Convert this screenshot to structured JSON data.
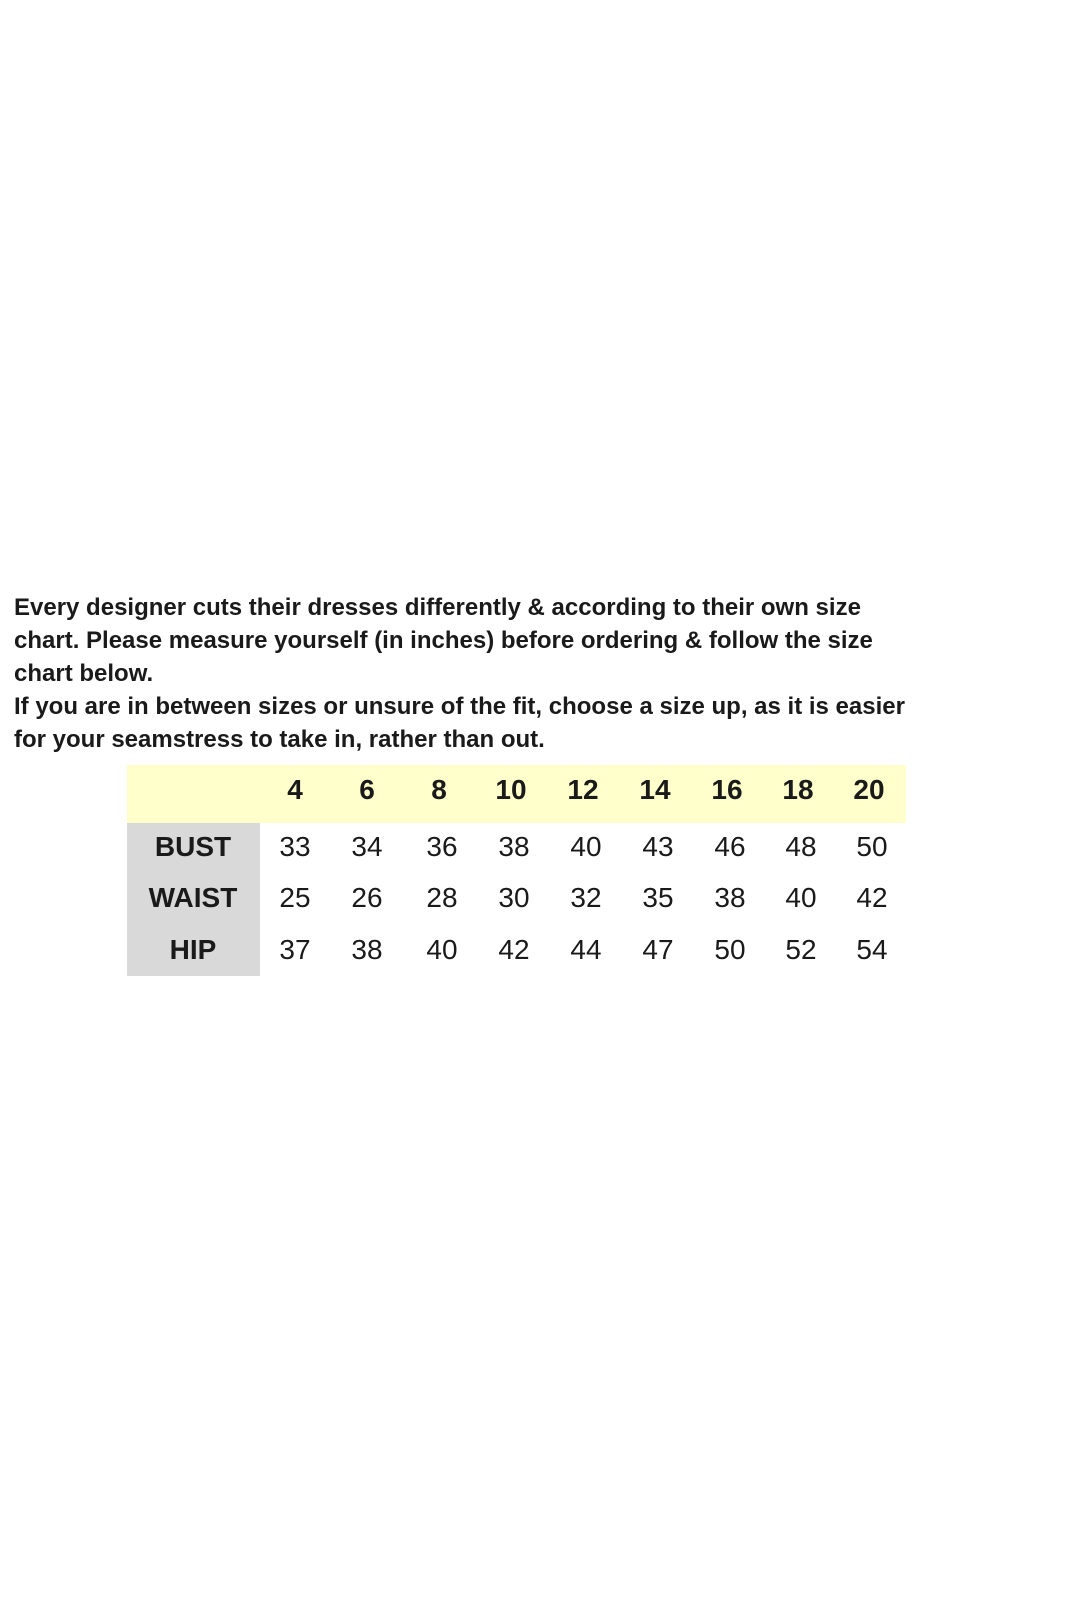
{
  "intro": {
    "paragraphs": [
      [
        "Every designer cuts their dresses differently & according to their own size",
        "chart. Please measure yourself (in inches) before ordering & follow the size",
        "chart below."
      ],
      [
        "If you are in between sizes or unsure of the fit, choose a size up, as it is easier",
        "for your seamstress to take in, rather than out."
      ]
    ]
  },
  "table": {
    "sizes": [
      4,
      6,
      8,
      10,
      12,
      14,
      16,
      18,
      20
    ],
    "rows": [
      {
        "label": "BUST",
        "values": [
          33,
          34,
          36,
          38,
          40,
          43,
          46,
          48,
          50
        ]
      },
      {
        "label": "WAIST",
        "values": [
          25,
          26,
          28,
          30,
          32,
          35,
          38,
          40,
          42
        ]
      },
      {
        "label": "HIP",
        "values": [
          37,
          38,
          40,
          42,
          44,
          47,
          50,
          52,
          54
        ]
      }
    ]
  }
}
